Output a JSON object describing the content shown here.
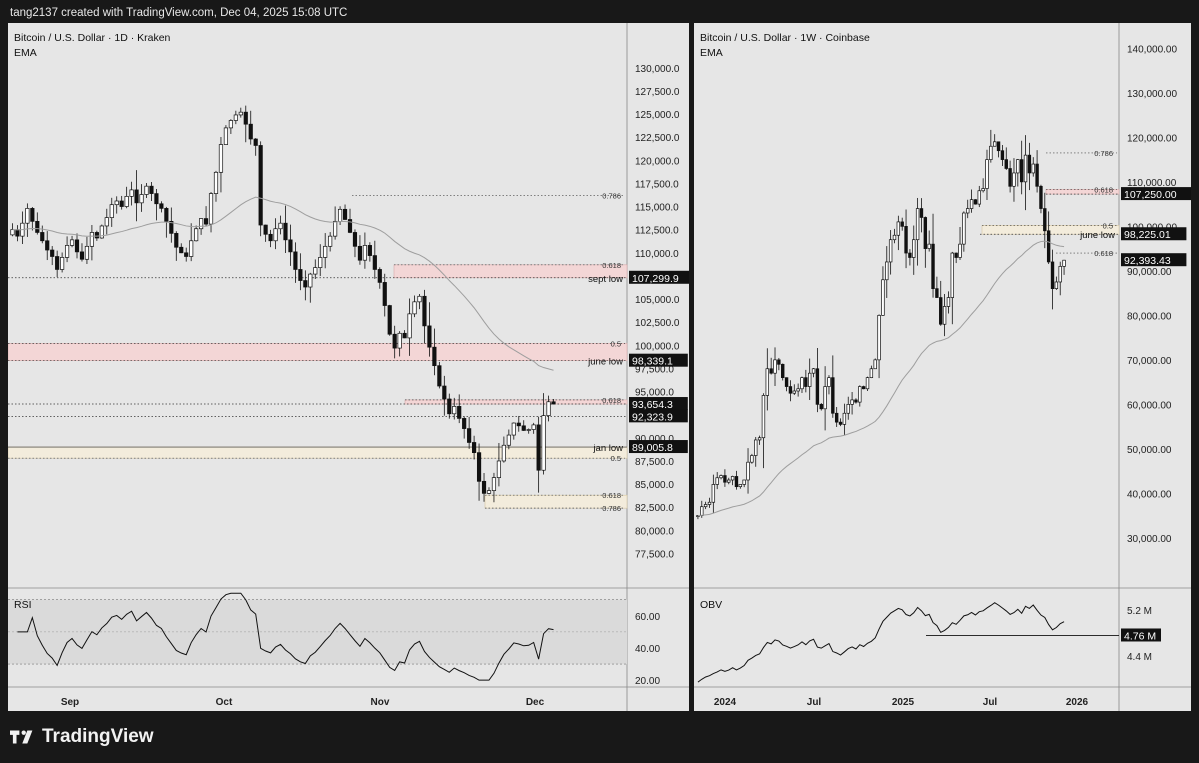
{
  "header": {
    "text": "tang2137 created with TradingView.com, Dec 04, 2025 15:08 UTC"
  },
  "footer": {
    "logo_text": "TradingView"
  },
  "colors": {
    "bg": "#181818",
    "pane": "#e6e6e6",
    "line": "#111111",
    "ema": "#9e9e9e",
    "zone_pink": "#f3d3d3",
    "zone_tan": "#f3ead8",
    "label_bg": "#111111"
  },
  "chart_data": [
    {
      "type": "candlestick",
      "title": "Bitcoin / U.S. Dollar · 1D · Kraken",
      "subtitle": "EMA",
      "ylim": [
        75500,
        133000
      ],
      "y_ticks": [
        "130,000.0",
        "127,500.0",
        "125,000.0",
        "122,500.0",
        "120,000.0",
        "117,500.0",
        "115,000.0",
        "112,500.0",
        "110,000.0",
        "107,500.0",
        "105,000.0",
        "102,500.0",
        "100,000.0",
        "97,500.0",
        "95,000.0",
        "92,500.0",
        "90,000.0",
        "87,500.0",
        "85,000.0",
        "82,500.0",
        "80,000.0",
        "77,500.0"
      ],
      "y_tick_values": [
        130000,
        127500,
        125000,
        122500,
        120000,
        117500,
        115000,
        112500,
        110000,
        107500,
        105000,
        102500,
        100000,
        97500,
        95000,
        92500,
        90000,
        87500,
        85000,
        82500,
        80000,
        77500
      ],
      "x_labels": [
        "Sep",
        "Oct",
        "Nov",
        "Dec"
      ],
      "price_labels": [
        {
          "label": "sept low",
          "value": "107,299.9",
          "y": 107300
        },
        {
          "label": "june low",
          "value": "98,339.1",
          "y": 98339
        },
        {
          "label": "",
          "value": "93,654.3",
          "y": 93654
        },
        {
          "label": "",
          "value": "92,323.9",
          "y": 92324
        },
        {
          "label": "jan low",
          "value": "89,005.8",
          "y": 89006
        }
      ],
      "fib_labels": [
        {
          "label": "0.786",
          "y": 116200
        },
        {
          "label": "0.618",
          "y": 108700
        },
        {
          "label": "0.5",
          "y": 100200
        },
        {
          "label": "0.618",
          "y": 94100
        },
        {
          "label": "0.5",
          "y": 87800
        },
        {
          "label": "0.618",
          "y": 83800
        },
        {
          "label": "0.786",
          "y": 82400
        }
      ],
      "closes": [
        112500,
        111800,
        113200,
        114800,
        113400,
        112200,
        111300,
        110300,
        109600,
        108200,
        109500,
        110800,
        111400,
        110100,
        109300,
        110700,
        112200,
        111600,
        112900,
        113800,
        115200,
        115600,
        115000,
        116100,
        116800,
        115400,
        116300,
        117200,
        116400,
        115300,
        114800,
        113400,
        112100,
        110600,
        110000,
        109600,
        111300,
        112600,
        113700,
        113100,
        116400,
        118700,
        121700,
        123500,
        124300,
        124900,
        125200,
        123900,
        122300,
        121600,
        113000,
        112000,
        111300,
        112600,
        113200,
        111400,
        110100,
        108200,
        107000,
        106300,
        107700,
        108400,
        109500,
        110700,
        111800,
        113400,
        114700,
        113600,
        112200,
        110700,
        109200,
        110800,
        109700,
        108200,
        106800,
        104300,
        101200,
        99700,
        101300,
        100800,
        103400,
        104700,
        105300,
        102100,
        99800,
        97800,
        95600,
        94200,
        92600,
        93400,
        92100,
        91000,
        89500,
        88400,
        85300,
        84000,
        84300,
        85700,
        87500,
        89200,
        90300,
        91600,
        91300,
        90800,
        90900,
        91400,
        86500,
        92400,
        93900,
        93654
      ],
      "rsi": {
        "title": "RSI",
        "ticks": [
          "60.00",
          "40.00",
          "20.00"
        ],
        "tick_values": [
          60,
          40,
          20
        ],
        "ylim": [
          17,
          76
        ]
      }
    },
    {
      "type": "candlestick",
      "title": "Bitcoin / U.S. Dollar · 1W · Coinbase",
      "subtitle": "EMA",
      "ylim": [
        23000,
        143000
      ],
      "y_ticks": [
        "140,000.00",
        "130,000.00",
        "120,000.00",
        "110,000.00",
        "100,000.00",
        "90,000.00",
        "80,000.00",
        "70,000.00",
        "60,000.00",
        "50,000.00",
        "40,000.00",
        "30,000.00"
      ],
      "y_tick_values": [
        140000,
        130000,
        120000,
        110000,
        100000,
        90000,
        80000,
        70000,
        60000,
        50000,
        40000,
        30000
      ],
      "x_labels": [
        "2024",
        "Jul",
        "2025",
        "Jul",
        "2026"
      ],
      "price_labels": [
        {
          "label": "",
          "value": "107,250.00",
          "y": 107250
        },
        {
          "label": "june low",
          "value": "98,225.01",
          "y": 98225
        },
        {
          "label": "",
          "value": "92,393.43",
          "y": 92393
        }
      ],
      "fib_labels": [
        {
          "label": "0.786",
          "y": 116500
        },
        {
          "label": "0.618",
          "y": 108300
        },
        {
          "label": "0.5",
          "y": 100200
        },
        {
          "label": "0.618",
          "y": 94000
        }
      ],
      "closes": [
        35000,
        37000,
        37500,
        38000,
        42000,
        43500,
        44000,
        42500,
        43000,
        43800,
        41500,
        42000,
        43000,
        47000,
        48500,
        52000,
        52500,
        62000,
        68000,
        67000,
        70000,
        69000,
        66000,
        64000,
        62500,
        63000,
        63500,
        66000,
        64000,
        67000,
        68000,
        60000,
        59000,
        64000,
        66000,
        58000,
        56000,
        55500,
        58000,
        60000,
        61000,
        60500,
        64000,
        63500,
        66000,
        68000,
        70000,
        80000,
        88000,
        92000,
        97000,
        98000,
        101000,
        100000,
        94000,
        93000,
        97000,
        104000,
        102000,
        95000,
        96000,
        86000,
        84000,
        78000,
        82000,
        84000,
        94000,
        93000,
        96000,
        103000,
        104000,
        106000,
        105000,
        108000,
        108500,
        115000,
        118000,
        119000,
        117000,
        115000,
        113000,
        109000,
        112000,
        115000,
        110000,
        116000,
        112000,
        114000,
        109000,
        104000,
        99000,
        92000,
        86000,
        87500,
        91000,
        92393
      ],
      "obv": {
        "title": "OBV",
        "ticks": [
          "5.2 M",
          "4.4 M"
        ],
        "tick_values": [
          5.2,
          4.4
        ],
        "current": "4.76 M",
        "current_value": 4.76,
        "ylim": [
          3.9,
          5.55
        ]
      }
    }
  ]
}
